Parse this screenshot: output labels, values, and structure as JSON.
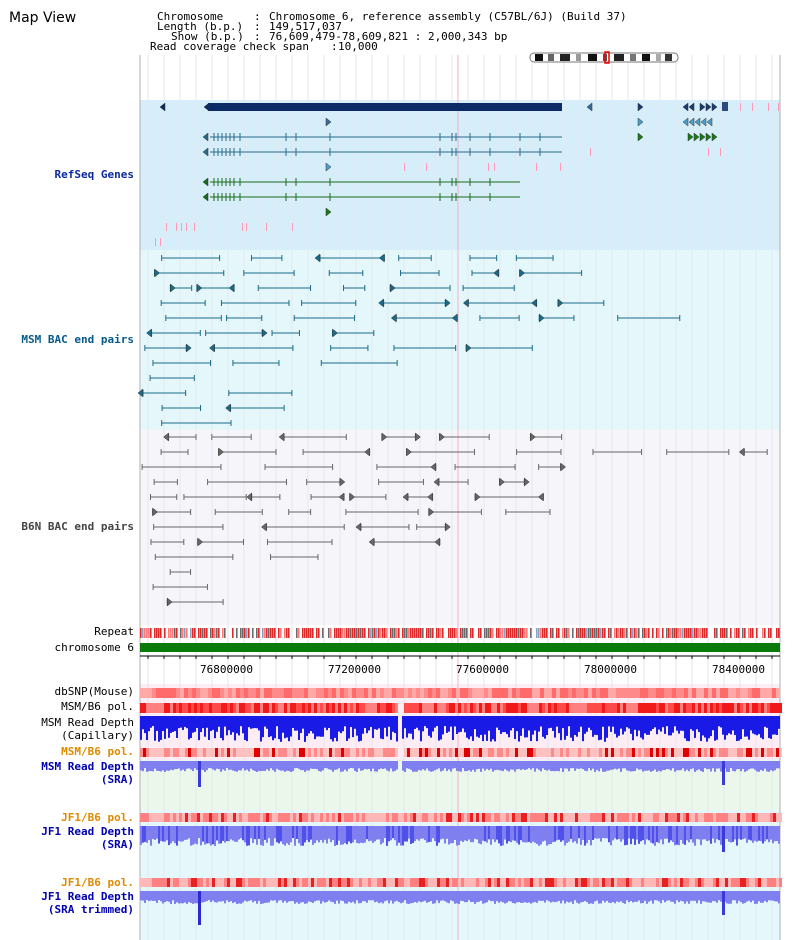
{
  "title": "Map View",
  "info": {
    "chromosome_label": "Chromosome",
    "chromosome_value": "Chromosome 6, reference assembly (C57BL/6J) (Build 37)",
    "length_label": "Length (b.p.)",
    "length_value": "149,517,037",
    "show_label": "Show (b.p.)",
    "show_value": "76,609,479-78,609,821 : 2,000,343 bp",
    "span_label": "Read coverage check span",
    "span_value": "10,000"
  },
  "tracks": {
    "refseq": "RefSeq Genes",
    "msm_bac": "MSM BAC end pairs",
    "b6n_bac": "B6N BAC end pairs",
    "repeat": "Repeat",
    "chrom": "chromosome 6",
    "dbsnp": "dbSNP(Mouse)",
    "msm_b6_pol": "MSM/B6 pol.",
    "msm_depth_cap_1": "MSM Read Depth",
    "msm_depth_cap_2": "(Capillary)",
    "msm_b6_pol_sra": "MSM/B6 pol.",
    "msm_depth_sra_1": "MSM Read Depth",
    "msm_depth_sra_2": "(SRA)",
    "jf1_b6_pol": "JF1/B6 pol.",
    "jf1_depth_1": "JF1 Read Depth",
    "jf1_depth_2": "(SRA)",
    "jf1_b6_pol_t": "JF1/B6 pol.",
    "jf1_depth_t_1": "JF1 Read Depth",
    "jf1_depth_t_2": "(SRA trimmed)"
  },
  "axis": {
    "ticks": [
      "76800000",
      "77200000",
      "77600000",
      "78000000",
      "78400000"
    ]
  },
  "colors": {
    "refseq_bg": "#d6eefa",
    "msm_bg": "#e4f8fb",
    "b6n_bg": "#f6f6fa",
    "gene_dark": "#0b2a66",
    "chrom_green": "#0a7a0a",
    "depth_blue": "#1a1ae6",
    "depth_light": "#7f7ff0",
    "snp_red": "#ff8080"
  }
}
